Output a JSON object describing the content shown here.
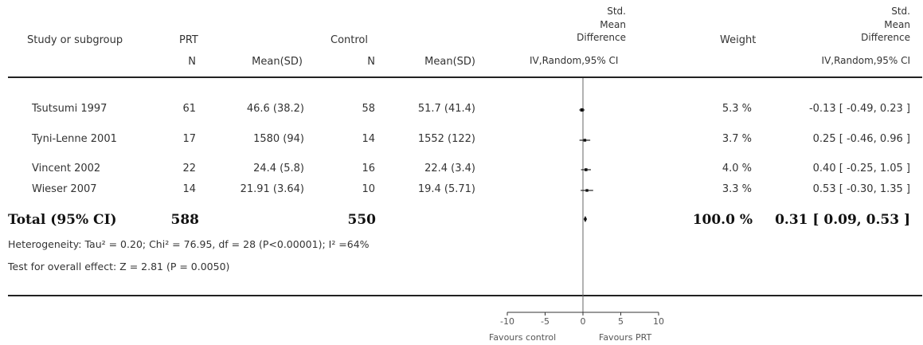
{
  "header": {
    "study_label": "Study or subgroup",
    "prt_label": "PRT",
    "control_label": "Control",
    "n_label": "N",
    "mean_sd_label": "Mean(SD)",
    "smd_plot_title_lines": [
      "Std.",
      "Mean",
      "Difference"
    ],
    "smd_plot_method": "IV,Random,95% CI",
    "weight_label": "Weight",
    "smd_col_title_lines": [
      "Std.",
      "Mean",
      "Difference"
    ],
    "smd_col_method": "IV,Random,95% CI"
  },
  "rows": [
    {
      "study": "Tsutsumi 1997",
      "prt_n": "61",
      "prt_mean_sd": "46.6 (38.2)",
      "ctrl_n": "58",
      "ctrl_mean_sd": "51.7 (41.4)",
      "weight": "5.3 %",
      "smd_text": "-0.13 [ -0.49, 0.23 ]"
    },
    {
      "study": "Tyni-Lenne 2001",
      "prt_n": "17",
      "prt_mean_sd": "1580 (94)",
      "ctrl_n": "14",
      "ctrl_mean_sd": "1552 (122)",
      "weight": "3.7 %",
      "smd_text": "0.25 [ -0.46, 0.96 ]"
    },
    {
      "study": "Vincent 2002",
      "prt_n": "22",
      "prt_mean_sd": "24.4 (5.8)",
      "ctrl_n": "16",
      "ctrl_mean_sd": "22.4 (3.4)",
      "weight": "4.0 %",
      "smd_text": "0.40 [ -0.25, 1.05 ]"
    },
    {
      "study": "Wieser 2007",
      "prt_n": "14",
      "prt_mean_sd": "21.91 (3.64)",
      "ctrl_n": "10",
      "ctrl_mean_sd": "19.4 (5.71)",
      "weight": "3.3 %",
      "smd_text": "0.53 [ -0.30, 1.35 ]"
    }
  ],
  "total": {
    "label": "Total (95% CI)",
    "prt_n": "588",
    "ctrl_n": "550",
    "weight": "100.0 %",
    "smd_text": "0.31 [ 0.09, 0.53 ]"
  },
  "footnotes": {
    "heterogeneity": "Heterogeneity: Tau² = 0.20; Chi² = 76.95, df = 28 (P<0.00001); I² =64%",
    "overall_effect": "Test for overall effect: Z = 2.81 (P = 0.0050)"
  },
  "axis": {
    "favours_left": "Favours control",
    "favours_right": "Favours PRT"
  },
  "chart_data": {
    "type": "forest",
    "xlim": [
      -10,
      10
    ],
    "ticks": [
      -10,
      -5,
      0,
      5,
      10
    ],
    "tick_labels": [
      "-10",
      "-5",
      "0",
      "5",
      "10"
    ],
    "studies": [
      {
        "name": "Tsutsumi 1997",
        "smd": -0.13,
        "ci": [
          -0.49,
          0.23
        ],
        "weight": 5.3
      },
      {
        "name": "Tyni-Lenne 2001",
        "smd": 0.25,
        "ci": [
          -0.46,
          0.96
        ],
        "weight": 3.7
      },
      {
        "name": "Vincent 2002",
        "smd": 0.4,
        "ci": [
          -0.25,
          1.05
        ],
        "weight": 4.0
      },
      {
        "name": "Wieser 2007",
        "smd": 0.53,
        "ci": [
          -0.3,
          1.35
        ],
        "weight": 3.3
      }
    ],
    "pooled": {
      "name": "Total (95% CI)",
      "smd": 0.31,
      "ci": [
        0.09,
        0.53
      ]
    }
  }
}
